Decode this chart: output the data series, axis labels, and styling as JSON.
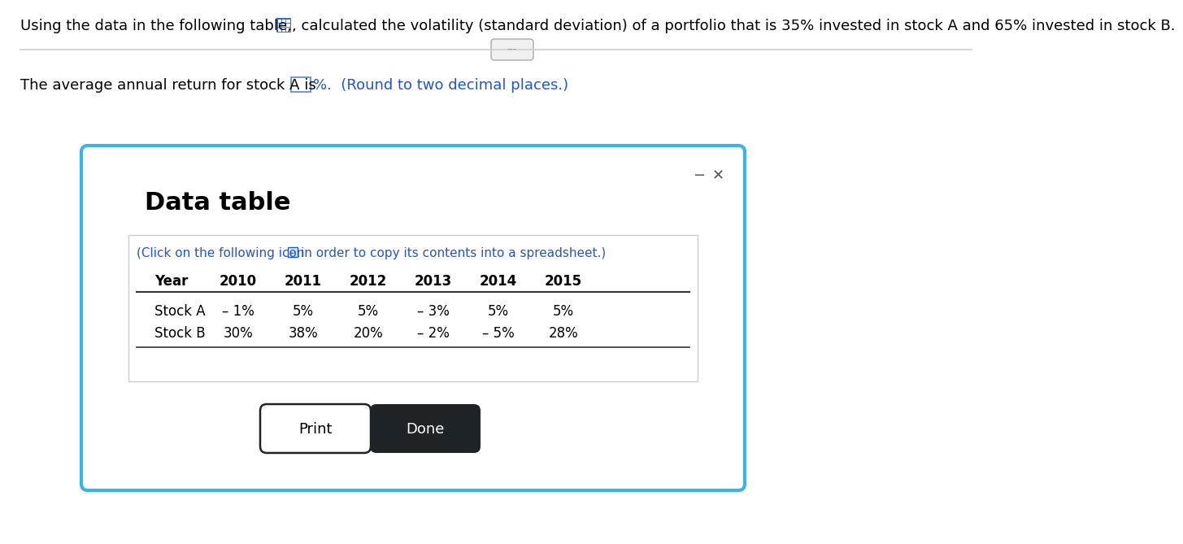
{
  "top_text1": "Using the data in the following table,",
  "top_text2": ", calculated the volatility (standard deviation) of a portfolio that is 35% invested in stock A and 65% invested in stock B.",
  "avg_return_text": "The average annual return for stock A is",
  "avg_return_suffix": "%.  (Round to two decimal places.)",
  "dialog_title": "Data table",
  "click_text_part1": "(Click on the following icon",
  "click_text_part2": "in order to copy its contents into a spreadsheet.)",
  "table_headers": [
    "Year",
    "2010",
    "2011",
    "2012",
    "2013",
    "2014",
    "2015"
  ],
  "stock_a_label": "Stock A",
  "stock_b_label": "Stock B",
  "stock_a_values": [
    "– 1%",
    "5%",
    "5%",
    "– 3%",
    "5%",
    "5%"
  ],
  "stock_b_values": [
    "30%",
    "38%",
    "20%",
    "– 2%",
    "– 5%",
    "28%"
  ],
  "print_btn": "Print",
  "done_btn": "Done",
  "bg_color": "#ffffff",
  "dialog_border_color": "#3ab4e8",
  "blue_text_color": "#2255cc",
  "done_btn_bg": "#1e2328",
  "top_line_color": "#cccccc",
  "pill_border": "#aaaaaa",
  "pill_bg": "#f0f0f0",
  "input_box_border": "#5588cc",
  "inner_box_border": "#cccccc",
  "table_line_color": "#333333",
  "minus_x_color": "#555555",
  "icon_bg": "#4488dd",
  "icon_border": "#2255cc",
  "icon_inner_bg": "#ddeeff"
}
